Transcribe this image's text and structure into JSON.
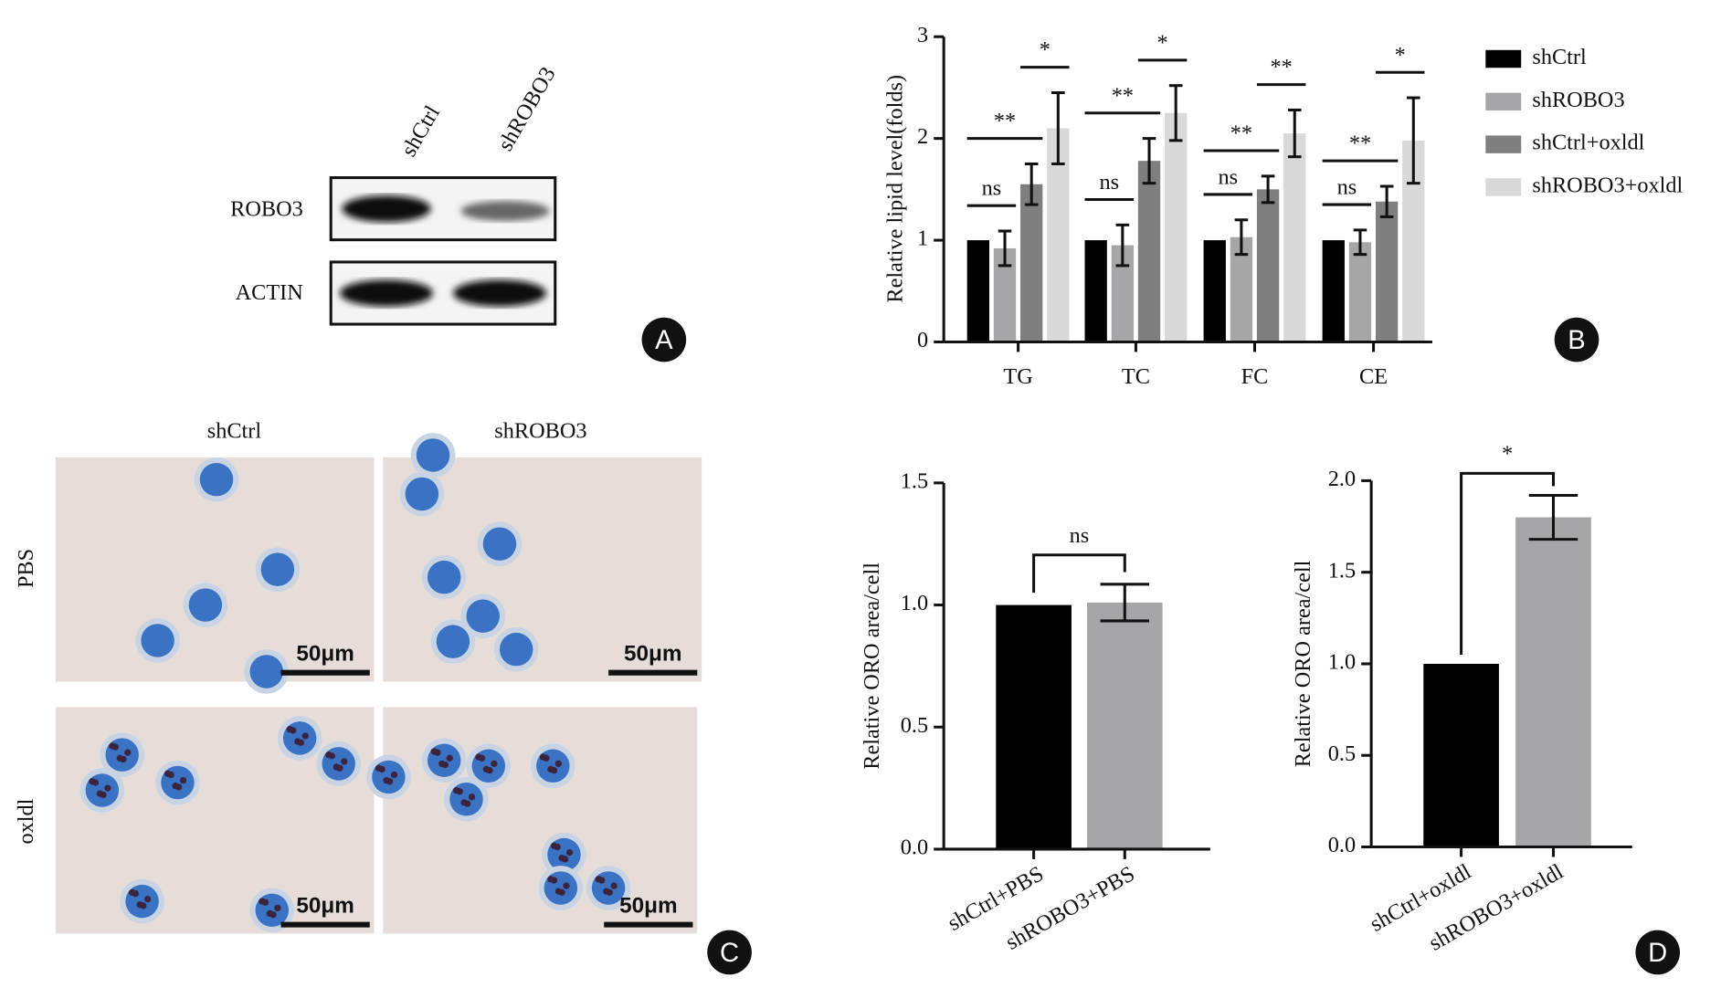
{
  "blot": {
    "lanes": [
      "shCtrl",
      "shROBO3"
    ],
    "rows": [
      "ROBO3",
      "ACTIN"
    ]
  },
  "micrographs": {
    "columns": [
      "shCtrl",
      "shROBO3"
    ],
    "rows": [
      "PBS",
      "oxldl"
    ],
    "scale_bar": "50μm"
  },
  "panel_labels": [
    "A",
    "B",
    "C",
    "D"
  ],
  "chart_data": [
    {
      "type": "bar",
      "ylabel": "Relative lipid level(folds)",
      "categories": [
        "TG",
        "TC",
        "FC",
        "CE"
      ],
      "series": [
        {
          "name": "shCtrl",
          "color": "#000000",
          "values": [
            1,
            1,
            1,
            1
          ]
        },
        {
          "name": "shROBO3",
          "color": "#a6a6a8",
          "values": [
            0.92,
            0.95,
            1.03,
            0.98
          ],
          "errors": [
            0.17,
            0.2,
            0.17,
            0.12
          ]
        },
        {
          "name": "shCtrl+oxldl",
          "color": "#7f7f7f",
          "values": [
            1.55,
            1.78,
            1.5,
            1.38
          ],
          "errors": [
            0.2,
            0.22,
            0.13,
            0.15
          ]
        },
        {
          "name": "shROBO3+oxldl",
          "color": "#d9d9d9",
          "values": [
            2.1,
            2.25,
            2.05,
            1.98
          ],
          "errors": [
            0.35,
            0.27,
            0.23,
            0.42
          ]
        }
      ],
      "annotations": [
        {
          "text": "ns",
          "category": 0,
          "from": 0,
          "to": 1
        },
        {
          "text": "**",
          "category": 0,
          "from": 0,
          "to": 2
        },
        {
          "text": "*",
          "category": 0,
          "from": 2,
          "to": 3
        },
        {
          "text": "ns",
          "category": 1,
          "from": 0,
          "to": 1
        },
        {
          "text": "**",
          "category": 1,
          "from": 0,
          "to": 2
        },
        {
          "text": "*",
          "category": 1,
          "from": 2,
          "to": 3
        },
        {
          "text": "ns",
          "category": 2,
          "from": 0,
          "to": 1
        },
        {
          "text": "**",
          "category": 2,
          "from": 0,
          "to": 2
        },
        {
          "text": "**",
          "category": 2,
          "from": 2,
          "to": 3
        },
        {
          "text": "ns",
          "category": 3,
          "from": 0,
          "to": 1
        },
        {
          "text": "**",
          "category": 3,
          "from": 0,
          "to": 2
        },
        {
          "text": "*",
          "category": 3,
          "from": 2,
          "to": 3
        }
      ],
      "ylim": [
        0,
        3
      ],
      "yticks": [
        0,
        1,
        2,
        3
      ],
      "legend": "right"
    },
    {
      "type": "bar",
      "ylabel": "Relative ORO area/cell",
      "categories": [
        "shCtrl+PBS",
        "shROBO3+PBS"
      ],
      "values": [
        1,
        1.01
      ],
      "errors": [
        0,
        0.075
      ],
      "colors": [
        "#000000",
        "#a6a6a8"
      ],
      "annotation": {
        "text": "ns"
      },
      "ylim": [
        0,
        1.5
      ],
      "yticks": [
        {
          "value": 0,
          "label": "0.0"
        },
        0.5,
        {
          "value": 1,
          "label": "1.0"
        },
        1.5
      ]
    },
    {
      "type": "bar",
      "ylabel": "Relative ORO area/cell",
      "categories": [
        "shCtrl+oxldl",
        "shROBO3+oxldl"
      ],
      "values": [
        1,
        1.8
      ],
      "errors": [
        0,
        0.12
      ],
      "colors": [
        "#000000",
        "#a6a6a8"
      ],
      "annotation": {
        "text": "*"
      },
      "ylim": [
        0,
        2
      ],
      "yticks": [
        {
          "value": 0,
          "label": "0.0"
        },
        0.5,
        {
          "value": 1,
          "label": "1.0"
        },
        1.5,
        {
          "value": 2,
          "label": "2.0"
        }
      ]
    }
  ]
}
